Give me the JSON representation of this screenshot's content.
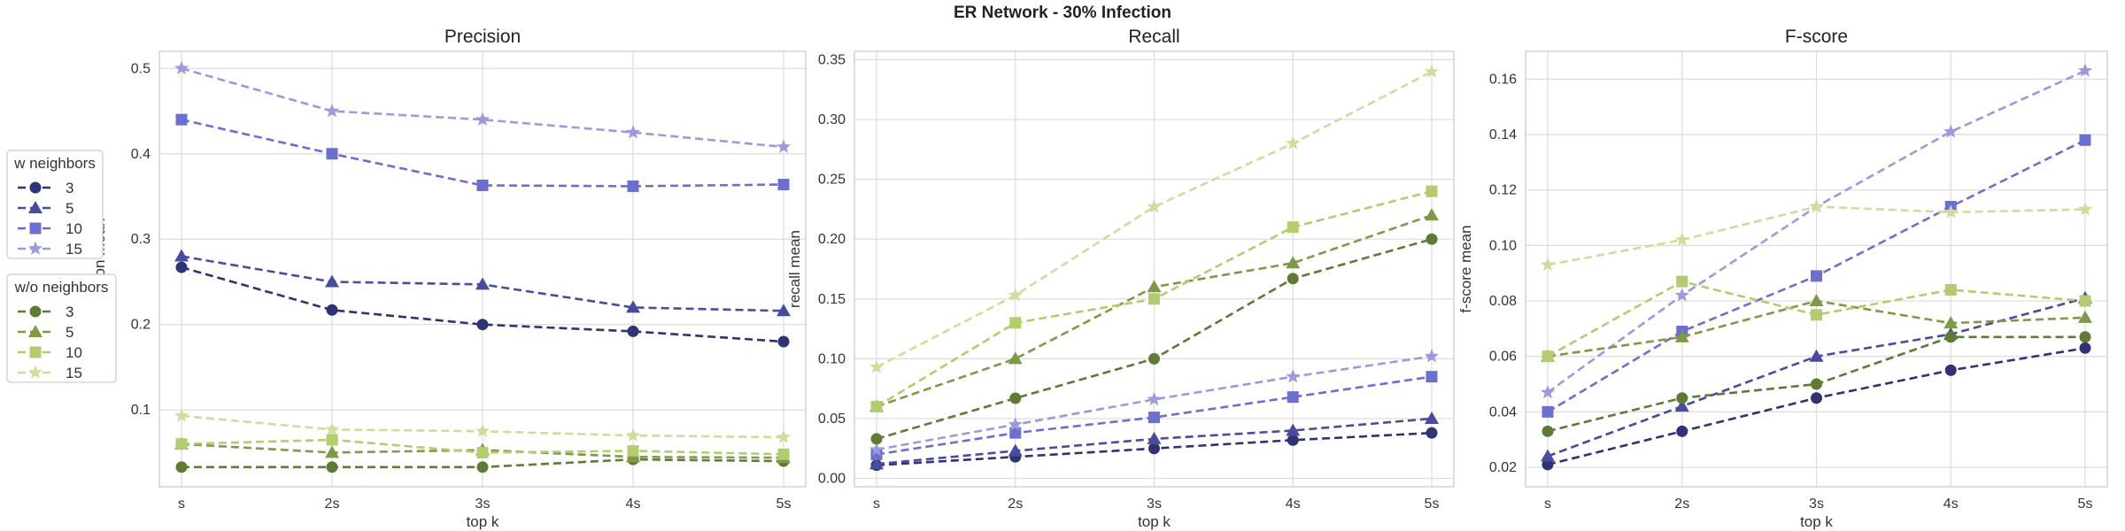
{
  "figure": {
    "title": "ER Network - 30% Infection"
  },
  "legends": [
    {
      "title": "w neighbors",
      "entries": [
        {
          "label": "3",
          "color": "#2f3274",
          "marker": "circle"
        },
        {
          "label": "5",
          "color": "#474d9c",
          "marker": "triangle"
        },
        {
          "label": "10",
          "color": "#6b6fd0",
          "marker": "square"
        },
        {
          "label": "15",
          "color": "#9a9ade",
          "marker": "star"
        }
      ]
    },
    {
      "title": "w/o neighbors",
      "entries": [
        {
          "label": "3",
          "color": "#5f7a33",
          "marker": "circle"
        },
        {
          "label": "5",
          "color": "#7e9a47",
          "marker": "triangle"
        },
        {
          "label": "10",
          "color": "#b3cc6e",
          "marker": "square"
        },
        {
          "label": "15",
          "color": "#cfdc9b",
          "marker": "star"
        }
      ]
    }
  ],
  "chart_data": [
    {
      "type": "line",
      "title": "Precision",
      "xlabel": "top k",
      "ylabel": "precision mean",
      "categories": [
        "s",
        "2s",
        "3s",
        "4s",
        "5s"
      ],
      "ylim": [
        0.01,
        0.52
      ],
      "yticks": [
        0.1,
        0.2,
        0.3,
        0.4,
        0.5
      ],
      "ytick_labels": [
        "0.1",
        "0.2",
        "0.3",
        "0.4",
        "0.5"
      ],
      "grid": true,
      "series": [
        {
          "name": "3",
          "group": "w neighbors",
          "values": [
            0.267,
            0.217,
            0.2,
            0.192,
            0.18
          ]
        },
        {
          "name": "5",
          "group": "w neighbors",
          "values": [
            0.28,
            0.25,
            0.247,
            0.22,
            0.216
          ]
        },
        {
          "name": "10",
          "group": "w neighbors",
          "values": [
            0.44,
            0.4,
            0.363,
            0.362,
            0.364
          ]
        },
        {
          "name": "15",
          "group": "w neighbors",
          "values": [
            0.5,
            0.45,
            0.44,
            0.425,
            0.408
          ]
        },
        {
          "name": "3",
          "group": "w/o neighbors",
          "values": [
            0.033,
            0.033,
            0.033,
            0.042,
            0.04
          ]
        },
        {
          "name": "5",
          "group": "w/o neighbors",
          "values": [
            0.06,
            0.05,
            0.053,
            0.045,
            0.044
          ]
        },
        {
          "name": "10",
          "group": "w/o neighbors",
          "values": [
            0.06,
            0.065,
            0.05,
            0.052,
            0.048
          ]
        },
        {
          "name": "15",
          "group": "w/o neighbors",
          "values": [
            0.093,
            0.077,
            0.075,
            0.07,
            0.068
          ]
        }
      ]
    },
    {
      "type": "line",
      "title": "Recall",
      "xlabel": "top k",
      "ylabel": "recall mean",
      "categories": [
        "s",
        "2s",
        "3s",
        "4s",
        "5s"
      ],
      "ylim": [
        -0.007,
        0.357
      ],
      "yticks": [
        0.0,
        0.05,
        0.1,
        0.15,
        0.2,
        0.25,
        0.3,
        0.35
      ],
      "ytick_labels": [
        "0.00",
        "0.05",
        "0.10",
        "0.15",
        "0.20",
        "0.25",
        "0.30",
        "0.35"
      ],
      "grid": true,
      "series": [
        {
          "name": "3",
          "group": "w neighbors",
          "values": [
            0.011,
            0.018,
            0.025,
            0.032,
            0.038
          ]
        },
        {
          "name": "5",
          "group": "w neighbors",
          "values": [
            0.012,
            0.023,
            0.033,
            0.04,
            0.05
          ]
        },
        {
          "name": "10",
          "group": "w neighbors",
          "values": [
            0.02,
            0.038,
            0.051,
            0.068,
            0.085
          ]
        },
        {
          "name": "15",
          "group": "w neighbors",
          "values": [
            0.024,
            0.045,
            0.066,
            0.085,
            0.102
          ]
        },
        {
          "name": "3",
          "group": "w/o neighbors",
          "values": [
            0.033,
            0.067,
            0.1,
            0.167,
            0.2
          ]
        },
        {
          "name": "5",
          "group": "w/o neighbors",
          "values": [
            0.06,
            0.1,
            0.16,
            0.18,
            0.22
          ]
        },
        {
          "name": "10",
          "group": "w/o neighbors",
          "values": [
            0.06,
            0.13,
            0.15,
            0.21,
            0.24
          ]
        },
        {
          "name": "15",
          "group": "w/o neighbors",
          "values": [
            0.093,
            0.153,
            0.227,
            0.28,
            0.34
          ]
        }
      ]
    },
    {
      "type": "line",
      "title": "F-score",
      "xlabel": "top k",
      "ylabel": "f-score mean",
      "categories": [
        "s",
        "2s",
        "3s",
        "4s",
        "5s"
      ],
      "ylim": [
        0.013,
        0.17
      ],
      "yticks": [
        0.02,
        0.04,
        0.06,
        0.08,
        0.1,
        0.12,
        0.14,
        0.16
      ],
      "ytick_labels": [
        "0.02",
        "0.04",
        "0.06",
        "0.08",
        "0.10",
        "0.12",
        "0.14",
        "0.16"
      ],
      "grid": true,
      "series": [
        {
          "name": "3",
          "group": "w neighbors",
          "values": [
            0.021,
            0.033,
            0.045,
            0.055,
            0.063
          ]
        },
        {
          "name": "5",
          "group": "w neighbors",
          "values": [
            0.024,
            0.042,
            0.06,
            0.068,
            0.081
          ]
        },
        {
          "name": "10",
          "group": "w neighbors",
          "values": [
            0.04,
            0.069,
            0.089,
            0.114,
            0.138
          ]
        },
        {
          "name": "15",
          "group": "w neighbors",
          "values": [
            0.047,
            0.082,
            0.114,
            0.141,
            0.163
          ]
        },
        {
          "name": "3",
          "group": "w/o neighbors",
          "values": [
            0.033,
            0.045,
            0.05,
            0.067,
            0.067
          ]
        },
        {
          "name": "5",
          "group": "w/o neighbors",
          "values": [
            0.06,
            0.067,
            0.08,
            0.072,
            0.074
          ]
        },
        {
          "name": "10",
          "group": "w/o neighbors",
          "values": [
            0.06,
            0.087,
            0.075,
            0.084,
            0.08
          ]
        },
        {
          "name": "15",
          "group": "w/o neighbors",
          "values": [
            0.093,
            0.102,
            0.114,
            0.112,
            0.113
          ]
        }
      ]
    }
  ]
}
